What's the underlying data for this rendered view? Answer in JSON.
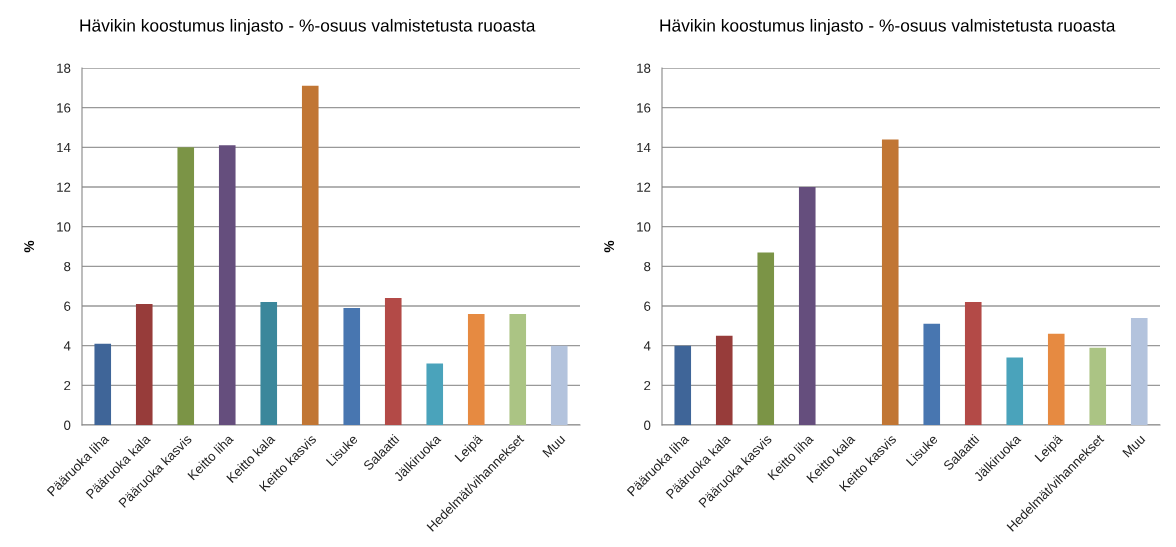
{
  "chart_data": [
    {
      "type": "bar",
      "title": "Hävikin koostumus linjasto - %-osuus valmistetusta ruoasta",
      "ylabel": "%",
      "categories": [
        "Pääruoka liha",
        "Pääruoka kala",
        "Pääruoka kasvis",
        "Keitto liha",
        "Keitto kala",
        "Keitto kasvis",
        "Lisuke",
        "Salaatti",
        "Jälkiruoka",
        "Leipä",
        "Hedelmät/vihannekset",
        "Muu"
      ],
      "values": [
        4.1,
        6.1,
        14.0,
        14.1,
        6.2,
        17.1,
        5.9,
        6.4,
        3.1,
        5.6,
        5.6,
        4.0
      ],
      "colors": [
        "#3f6598",
        "#973c3a",
        "#7b9446",
        "#654e7d",
        "#3b879b",
        "#c17634",
        "#4876b0",
        "#b34a47",
        "#4aa3bb",
        "#e68a41",
        "#abc484",
        "#b3c3dd"
      ],
      "ylim": [
        0,
        18
      ],
      "yticks": [
        0,
        2,
        4,
        6,
        8,
        10,
        12,
        14,
        16,
        18
      ],
      "grid": "y",
      "legend": false
    },
    {
      "type": "bar",
      "title": "Hävikin koostumus linjasto - %-osuus valmistetusta ruoasta",
      "ylabel": "%",
      "categories": [
        "Pääruoka liha",
        "Pääruoka kala",
        "Pääruoka kasvis",
        "Keitto liha",
        "Keitto kala",
        "Keitto kasvis",
        "Lisuke",
        "Salaatti",
        "Jälkiruoka",
        "Leipä",
        "Hedelmät/vihannekset",
        "Muu"
      ],
      "values": [
        4.0,
        4.5,
        8.7,
        12.0,
        0,
        14.4,
        5.1,
        6.2,
        3.4,
        4.6,
        3.9,
        5.4
      ],
      "colors": [
        "#3f6598",
        "#973c3a",
        "#7b9446",
        "#654e7d",
        "#3b879b",
        "#c17634",
        "#4876b0",
        "#b34a47",
        "#4aa3bb",
        "#e68a41",
        "#abc484",
        "#b3c3dd"
      ],
      "ylim": [
        0,
        18
      ],
      "yticks": [
        0,
        2,
        4,
        6,
        8,
        10,
        12,
        14,
        16,
        18
      ],
      "grid": "y",
      "legend": false
    }
  ]
}
